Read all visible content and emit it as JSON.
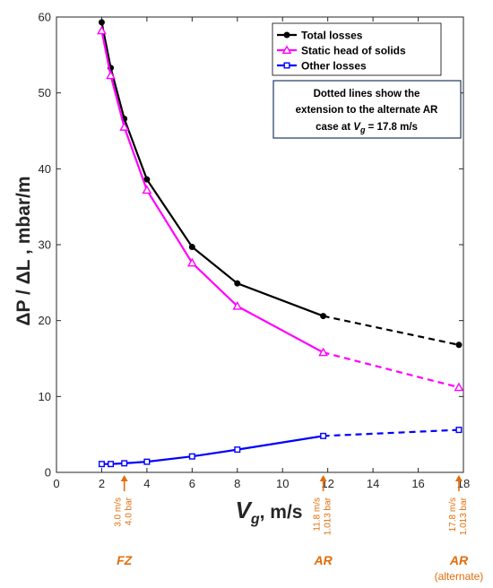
{
  "chart_data": {
    "type": "line",
    "xlabel_main": "V",
    "xlabel_sub": "g",
    "xlabel_unit": ", m/s",
    "ylabel": "ΔP / ΔL ,  mbar/m",
    "xlim": [
      0,
      18
    ],
    "ylim": [
      0,
      60
    ],
    "xticks": [
      0,
      2,
      4,
      6,
      8,
      10,
      12,
      14,
      16,
      18
    ],
    "yticks": [
      0,
      10,
      20,
      30,
      40,
      50,
      60
    ],
    "grid": false,
    "legend_position": "top-right",
    "series": [
      {
        "name": "Total losses",
        "color": "#000000",
        "marker": "circle",
        "x": [
          2.0,
          2.4,
          3.0,
          4.0,
          6.0,
          8.0,
          11.8
        ],
        "y": [
          59.3,
          53.3,
          46.6,
          38.6,
          29.7,
          24.9,
          20.6
        ],
        "extension": {
          "x": [
            11.8,
            17.8
          ],
          "y": [
            20.6,
            16.8
          ]
        }
      },
      {
        "name": "Static head of solids",
        "color": "#ff00ff",
        "marker": "triangle",
        "x": [
          2.0,
          2.4,
          3.0,
          4.0,
          6.0,
          8.0,
          11.8
        ],
        "y": [
          58.2,
          52.3,
          45.5,
          37.2,
          27.6,
          21.9,
          15.8
        ],
        "extension": {
          "x": [
            11.8,
            17.8
          ],
          "y": [
            15.8,
            11.2
          ]
        }
      },
      {
        "name": "Other losses",
        "color": "#0000ff",
        "marker": "square",
        "x": [
          2.0,
          2.4,
          3.0,
          4.0,
          6.0,
          8.0,
          11.8
        ],
        "y": [
          1.1,
          1.1,
          1.2,
          1.4,
          2.1,
          3.0,
          4.8
        ],
        "extension": {
          "x": [
            11.8,
            17.8
          ],
          "y": [
            4.8,
            5.6
          ]
        }
      }
    ],
    "note": {
      "line1": "Dotted lines show the",
      "line2": "extension to the alternate AR",
      "line3_prefix": "case at ",
      "line3_var": "V",
      "line3_sub": "g",
      "line3_suffix": " = 17.8 m/s"
    },
    "annotations": [
      {
        "x": 3.0,
        "speed": "3.0  m/s",
        "pressure": "4.0 bar",
        "label": "FZ",
        "sublabel": ""
      },
      {
        "x": 11.8,
        "speed": "11.8  m/s",
        "pressure": "1.013 bar",
        "label": "AR",
        "sublabel": ""
      },
      {
        "x": 17.8,
        "speed": "17.8  m/s",
        "pressure": "1.013 bar",
        "label": "AR",
        "sublabel": "(alternate)"
      }
    ],
    "annotation_color": "#e36c09"
  }
}
